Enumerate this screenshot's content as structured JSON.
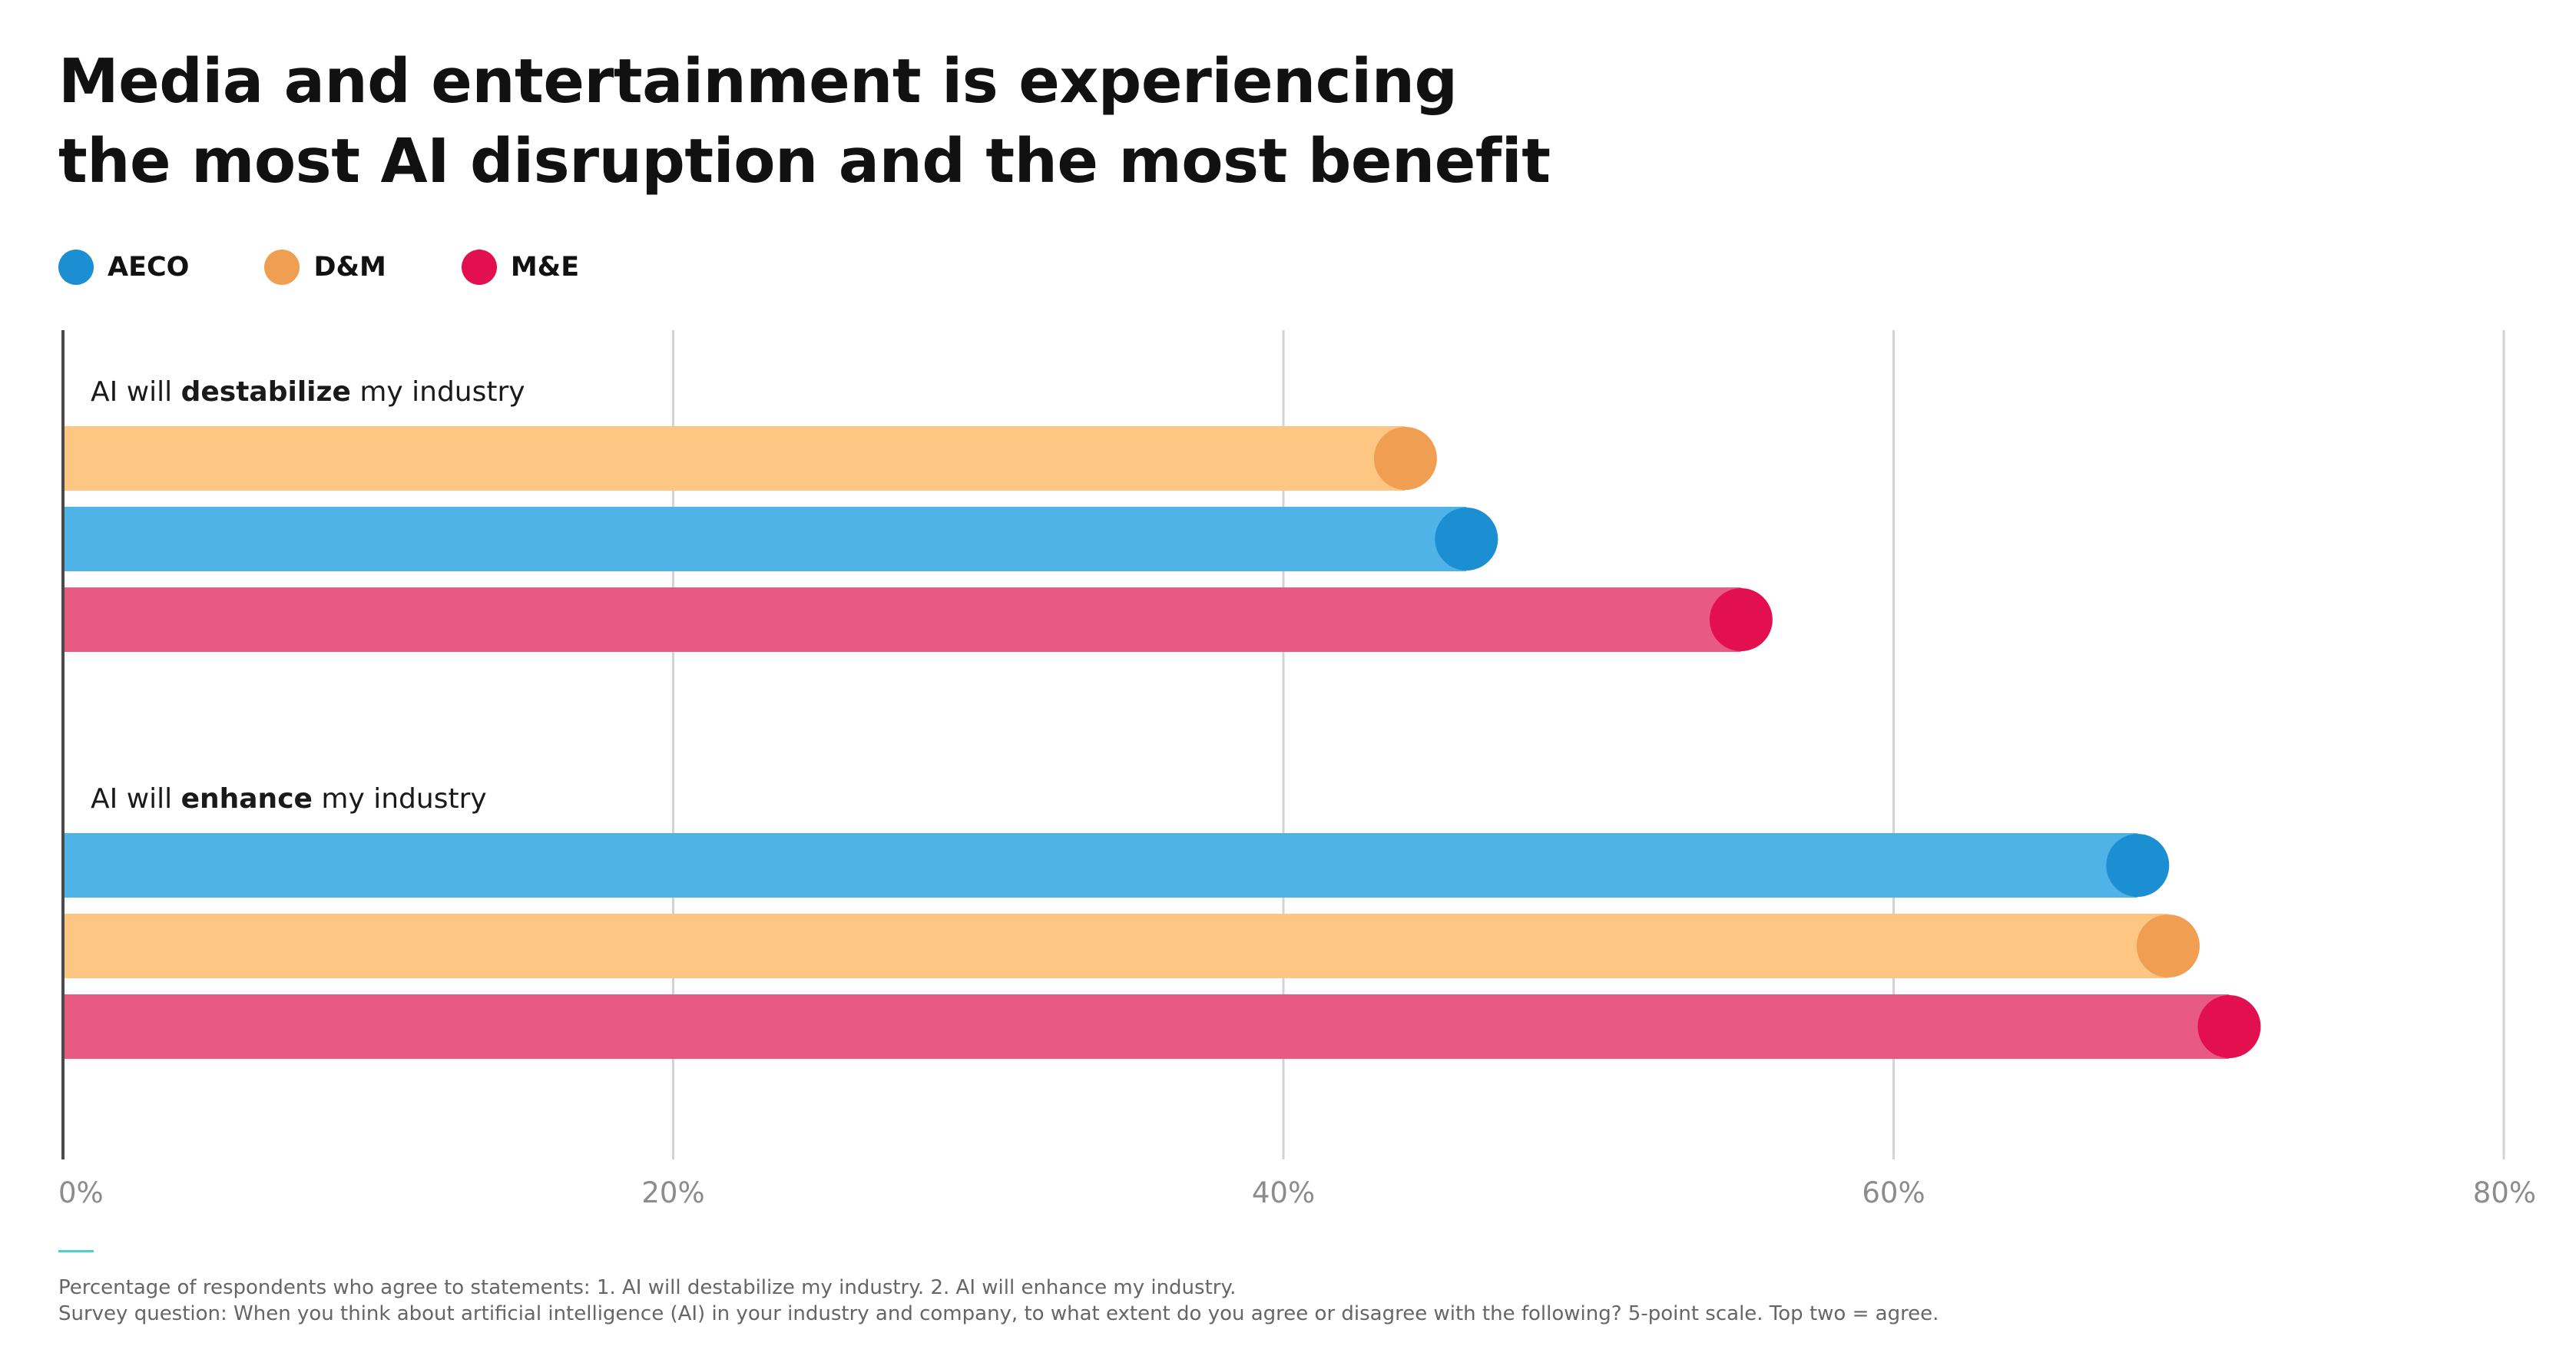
{
  "title": {
    "line1": "Media and entertainment is experiencing",
    "line2": "the most AI disruption and the most benefit"
  },
  "legend": [
    {
      "name": "AECO",
      "color": "#1b8fd2"
    },
    {
      "name": "D&M",
      "color": "#f09e52"
    },
    {
      "name": "M&E",
      "color": "#e2104f"
    }
  ],
  "chart_data": {
    "type": "bar",
    "orientation": "horizontal",
    "xlim": [
      0,
      80
    ],
    "ticks": [
      "0%",
      "20%",
      "40%",
      "60%",
      "80%"
    ],
    "tick_values": [
      0,
      20,
      40,
      60,
      80
    ],
    "grid": true,
    "legend_position": "top-left",
    "groups": [
      {
        "label_pre": "AI will ",
        "label_bold": "destabilize",
        "label_post": " my industry",
        "bars": [
          {
            "series": "D&M",
            "value": 44
          },
          {
            "series": "AECO",
            "value": 46
          },
          {
            "series": "M&E",
            "value": 55
          }
        ]
      },
      {
        "label_pre": "AI will ",
        "label_bold": "enhance",
        "label_post": " my industry",
        "bars": [
          {
            "series": "AECO",
            "value": 68
          },
          {
            "series": "D&M",
            "value": 69
          },
          {
            "series": "M&E",
            "value": 71
          }
        ]
      }
    ],
    "bar_colors": {
      "AECO": {
        "bar": "#4fb3e8",
        "dot": "#1b8fd2"
      },
      "D&M": {
        "bar": "#fdc683",
        "dot": "#f09e52"
      },
      "M&E": {
        "bar": "#e85a82",
        "dot": "#e2104f"
      }
    }
  },
  "footnote": {
    "line1": "Percentage of respondents who agree to statements: 1. AI will destabilize my industry. 2. AI will enhance my industry.",
    "line2": "Survey question: When you think about artificial intelligence (AI) in your industry and company, to what extent do you agree or disagree with the following? 5-point scale. Top two = agree."
  }
}
